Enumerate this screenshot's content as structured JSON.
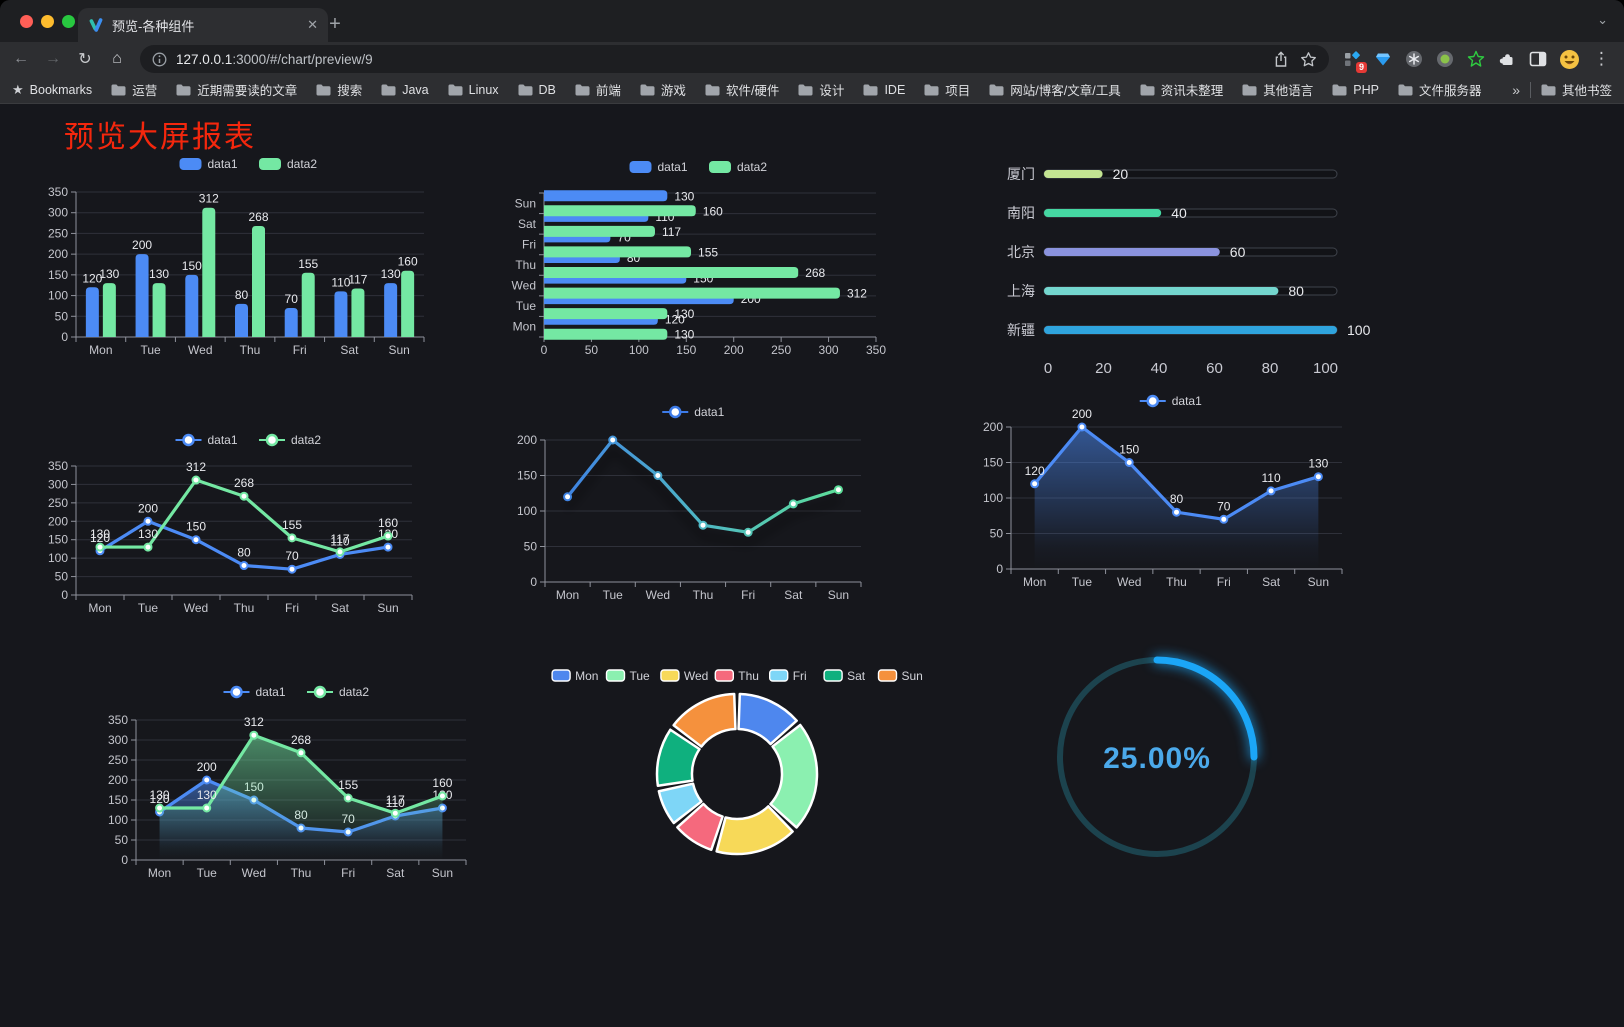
{
  "browser": {
    "tab": {
      "title": "预览-各种组件"
    },
    "url": {
      "host": "127.0.0.1",
      "rest": ":3000/#/chart/preview/9"
    },
    "bookmarks_label": "Bookmarks",
    "bookmark_folders": [
      "运营",
      "近期需要读的文章",
      "搜索",
      "Java",
      "Linux",
      "DB",
      "前端",
      "游戏",
      "软件/硬件",
      "设计",
      "IDE",
      "项目",
      "网站/博客/文章/工具",
      "资讯未整理",
      "其他语言",
      "PHP",
      "文件服务器"
    ],
    "bookmarks_overflow": "»",
    "other_bookmarks": "其他书签",
    "extension_badge": "9"
  },
  "page": {
    "title": "预览大屏报表",
    "title_color": "#f4270d",
    "background": "#16171c"
  },
  "chart_data": [
    {
      "id": "grouped-bar",
      "type": "bar",
      "categories": [
        "Mon",
        "Tue",
        "Wed",
        "Thu",
        "Fri",
        "Sat",
        "Sun"
      ],
      "series": [
        {
          "name": "data1",
          "color": "#4c8bf5",
          "values": [
            120,
            200,
            150,
            80,
            70,
            110,
            130
          ]
        },
        {
          "name": "data2",
          "color": "#74e8a3",
          "values": [
            130,
            130,
            312,
            268,
            155,
            117,
            160
          ]
        }
      ],
      "ylim": [
        0,
        350
      ],
      "ytick": 50,
      "legend": [
        "data1",
        "data2"
      ],
      "legend_position": "top",
      "value_labels": true,
      "grid": true
    },
    {
      "id": "grouped-hbar",
      "type": "hbar",
      "categories": [
        "Mon",
        "Tue",
        "Wed",
        "Thu",
        "Fri",
        "Sat",
        "Sun"
      ],
      "series": [
        {
          "name": "data1",
          "color": "#4c8bf5",
          "values": [
            120,
            200,
            150,
            80,
            70,
            110,
            130
          ]
        },
        {
          "name": "data2",
          "color": "#74e8a3",
          "values": [
            130,
            130,
            312,
            268,
            155,
            117,
            160
          ]
        }
      ],
      "xlim": [
        0,
        350
      ],
      "xtick": 50,
      "legend": [
        "data1",
        "data2"
      ],
      "legend_position": "top",
      "value_labels": true,
      "grid": true
    },
    {
      "id": "city-progress",
      "type": "progress",
      "categories": [
        "厦门",
        "南阳",
        "北京",
        "上海",
        "新疆"
      ],
      "values": [
        20,
        40,
        60,
        80,
        100
      ],
      "colors": [
        "#c3e492",
        "#45d7a2",
        "#8b93de",
        "#74d6ce",
        "#2fa4dd"
      ],
      "xlim": [
        0,
        100
      ],
      "xticks": [
        0,
        20,
        40,
        60,
        80,
        100
      ]
    },
    {
      "id": "grouped-line",
      "type": "line",
      "categories": [
        "Mon",
        "Tue",
        "Wed",
        "Thu",
        "Fri",
        "Sat",
        "Sun"
      ],
      "series": [
        {
          "name": "data1",
          "color": "#4c8bf5",
          "values": [
            120,
            200,
            150,
            80,
            70,
            110,
            130
          ]
        },
        {
          "name": "data2",
          "color": "#74e8a3",
          "values": [
            130,
            130,
            312,
            268,
            155,
            117,
            160
          ]
        }
      ],
      "ylim": [
        0,
        350
      ],
      "ytick": 50,
      "legend": [
        "data1",
        "data2"
      ],
      "legend_position": "top",
      "value_labels": true,
      "grid": true
    },
    {
      "id": "gradient-line",
      "type": "line",
      "categories": [
        "Mon",
        "Tue",
        "Wed",
        "Thu",
        "Fri",
        "Sat",
        "Sun"
      ],
      "series": [
        {
          "name": "data1",
          "gradient": [
            "#3d7be8",
            "#4fb8c4",
            "#5fe493"
          ],
          "values": [
            120,
            200,
            150,
            80,
            70,
            110,
            130
          ]
        }
      ],
      "ylim": [
        0,
        200
      ],
      "ytick": 50,
      "legend": [
        "data1"
      ],
      "legend_position": "top",
      "value_labels": false,
      "shadow": true,
      "grid": true
    },
    {
      "id": "blue-area-line",
      "type": "line",
      "categories": [
        "Mon",
        "Tue",
        "Wed",
        "Thu",
        "Fri",
        "Sat",
        "Sun"
      ],
      "series": [
        {
          "name": "data1",
          "color": "#4c8bf5",
          "area": true,
          "values": [
            120,
            200,
            150,
            80,
            70,
            110,
            130
          ]
        }
      ],
      "ylim": [
        0,
        200
      ],
      "ytick": 50,
      "legend": [
        "data1"
      ],
      "legend_position": "top",
      "value_labels": true,
      "grid": true
    },
    {
      "id": "grouped-area",
      "type": "line",
      "categories": [
        "Mon",
        "Tue",
        "Wed",
        "Thu",
        "Fri",
        "Sat",
        "Sun"
      ],
      "series": [
        {
          "name": "data1",
          "color": "#4c8bf5",
          "area": true,
          "values": [
            120,
            200,
            150,
            80,
            70,
            110,
            130
          ]
        },
        {
          "name": "data2",
          "color": "#74e8a3",
          "area": true,
          "values": [
            130,
            130,
            312,
            268,
            155,
            117,
            160
          ]
        }
      ],
      "ylim": [
        0,
        350
      ],
      "ytick": 50,
      "legend": [
        "data1",
        "data2"
      ],
      "legend_position": "top",
      "value_labels": true,
      "grid": true
    },
    {
      "id": "donut-days",
      "type": "pie",
      "categories": [
        "Mon",
        "Tue",
        "Wed",
        "Thu",
        "Fri",
        "Sat",
        "Sun"
      ],
      "values": [
        120,
        200,
        150,
        80,
        70,
        110,
        130
      ],
      "colors": [
        "#4e87ee",
        "#8bf0b0",
        "#f7d958",
        "#f5697d",
        "#7ed6f7",
        "#0fb07e",
        "#f5913d"
      ],
      "legend_position": "top",
      "donut": true
    },
    {
      "id": "gauge-percent",
      "type": "gauge",
      "value": 25,
      "max": 100,
      "label": "25.00%",
      "color": "#1ba6f7",
      "track_color": "#1c434e",
      "text_color": "#4ba9ea"
    }
  ]
}
